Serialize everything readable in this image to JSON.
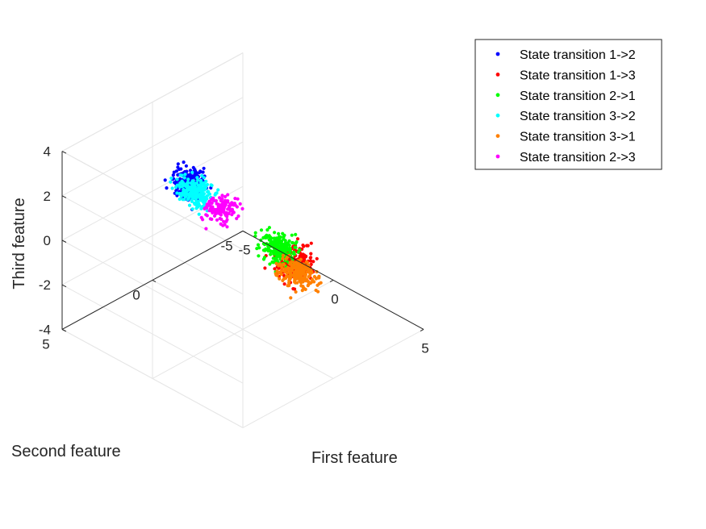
{
  "chart_data": {
    "type": "scatter",
    "view": "3d",
    "title": "",
    "xlabel": "First feature",
    "ylabel": "Second feature",
    "zlabel": "Third feature",
    "xlim": [
      -5,
      5
    ],
    "ylim": [
      -5,
      5
    ],
    "zlim": [
      -4,
      4
    ],
    "xticks": [
      "-5",
      "0",
      "5"
    ],
    "yticks": [
      "-5",
      "0",
      "5"
    ],
    "zticks": [
      "-4",
      "-2",
      "0",
      "2",
      "4"
    ],
    "grid": true,
    "legend_position": "top-right",
    "series": [
      {
        "name": "State transition 1->2",
        "color": "#0000ff",
        "center": [
          -2.6,
          0.4,
          1.6
        ],
        "spread": [
          0.35,
          0.35,
          0.3
        ],
        "count": 220
      },
      {
        "name": "State transition 1->3",
        "color": "#ff0000",
        "center": [
          1.6,
          -1.2,
          -0.8
        ],
        "spread": [
          0.35,
          0.35,
          0.3
        ],
        "count": 220
      },
      {
        "name": "State transition 2->1",
        "color": "#00ff00",
        "center": [
          2.8,
          0.8,
          1.2
        ],
        "spread": [
          0.4,
          0.3,
          0.25
        ],
        "count": 220
      },
      {
        "name": "State transition 3->2",
        "color": "#00ffff",
        "center": [
          -0.4,
          2.2,
          3.0
        ],
        "spread": [
          0.45,
          0.3,
          0.25
        ],
        "count": 220
      },
      {
        "name": "State transition 3->1",
        "color": "#ff8000",
        "center": [
          0.0,
          -3.0,
          -2.8
        ],
        "spread": [
          0.45,
          0.3,
          0.25
        ],
        "count": 220
      },
      {
        "name": "State transition 2->3",
        "color": "#ff00ff",
        "center": [
          -2.6,
          -1.4,
          -0.4
        ],
        "spread": [
          0.3,
          0.3,
          0.25
        ],
        "count": 140
      }
    ]
  }
}
